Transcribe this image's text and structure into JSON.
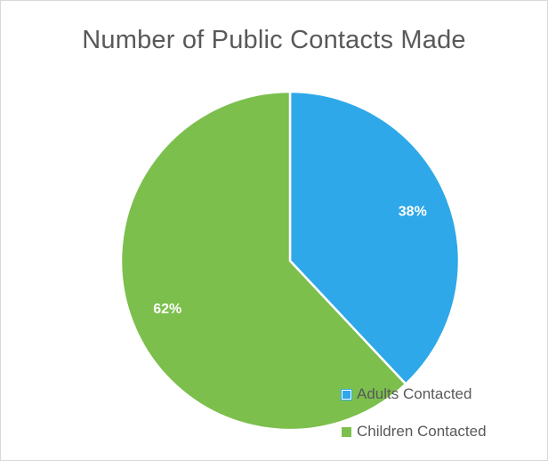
{
  "chart_data": {
    "type": "pie",
    "title": "Number of Public Contacts Made",
    "categories": [
      "Adults Contacted",
      "Children Contacted"
    ],
    "values": [
      38,
      62
    ],
    "labels": [
      "38%",
      "62%"
    ],
    "colors": [
      "#2ea8e8",
      "#7cbf4d"
    ],
    "legend_position": "bottom-right"
  }
}
